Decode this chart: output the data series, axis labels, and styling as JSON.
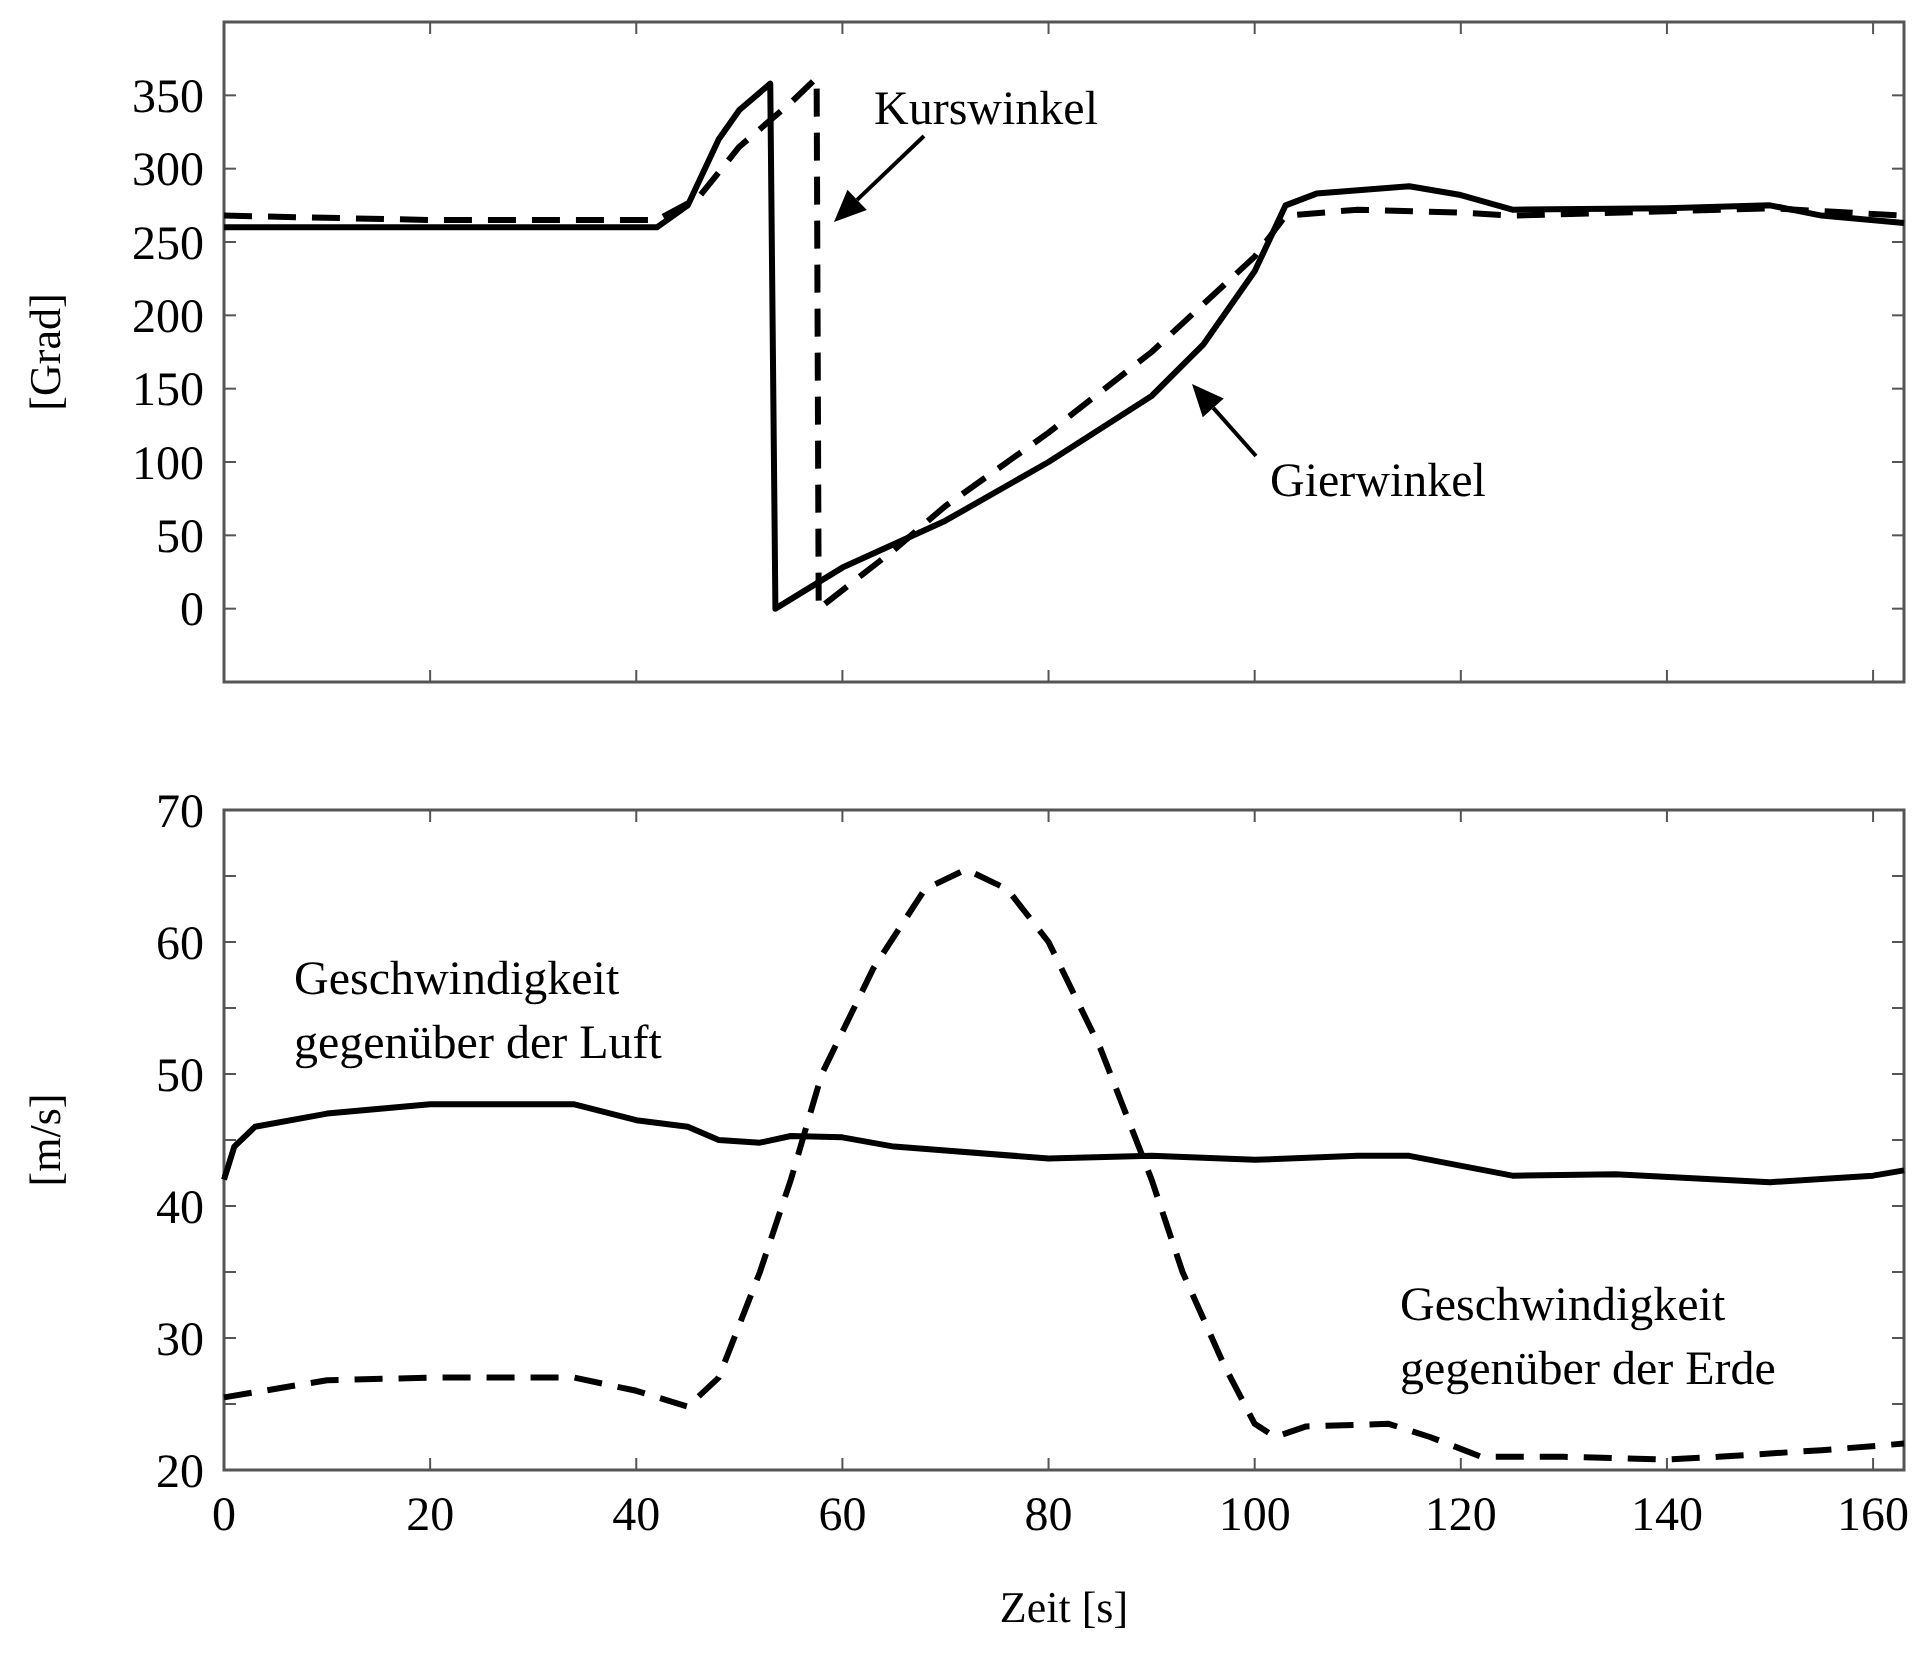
{
  "chart_data": [
    {
      "type": "line",
      "ylabel": "[Grad]",
      "xlim": [
        0,
        163
      ],
      "xticks": [
        {
          "value": 0,
          "label": null
        },
        {
          "value": 20,
          "label": null
        },
        {
          "value": 40,
          "label": null
        },
        {
          "value": 60,
          "label": null
        },
        {
          "value": 80,
          "label": null
        },
        {
          "value": 100,
          "label": null
        },
        {
          "value": 120,
          "label": null
        },
        {
          "value": 140,
          "label": null
        },
        {
          "value": 160,
          "label": null
        }
      ],
      "ylim": [
        -50,
        400
      ],
      "yticks": [
        0,
        50,
        100,
        150,
        200,
        250,
        300,
        350
      ],
      "tick_labels": "y",
      "grid": false,
      "series": [
        {
          "name": "Gierwinkel",
          "color": "#000000",
          "line_style": "solid",
          "x": [
            0,
            20,
            42,
            45,
            48,
            50,
            53,
            53.5,
            60,
            70,
            80,
            90,
            95,
            100,
            103,
            106,
            115,
            120,
            125,
            140,
            150,
            155,
            163
          ],
          "values": [
            260,
            260,
            260,
            275,
            320,
            340,
            358,
            0,
            28,
            60,
            100,
            145,
            180,
            230,
            275,
            283,
            288,
            282,
            272,
            273,
            275,
            268,
            263
          ]
        },
        {
          "name": "Kurswinkel",
          "color": "#000000",
          "line_style": "dashed",
          "x": [
            0,
            20,
            42,
            46,
            50,
            55,
            57.5,
            57.7,
            65,
            70,
            80,
            90,
            100,
            103,
            110,
            120,
            125,
            140,
            150,
            163
          ],
          "values": [
            268,
            265,
            265,
            280,
            315,
            345,
            362,
            0,
            40,
            70,
            120,
            175,
            240,
            268,
            272,
            270,
            268,
            271,
            273,
            268
          ]
        }
      ]
    },
    {
      "type": "line",
      "ylabel": "[m/s]",
      "xlabel": "Zeit [s]",
      "xlim": [
        0,
        163
      ],
      "xticks": [
        0,
        20,
        40,
        60,
        80,
        100,
        120,
        140,
        160
      ],
      "ylim": [
        20,
        70
      ],
      "yticks": [
        20,
        {
          "value": 25,
          "label": null
        },
        30,
        {
          "value": 35,
          "label": null
        },
        40,
        {
          "value": 45,
          "label": null
        },
        50,
        {
          "value": 55,
          "label": null
        },
        60,
        {
          "value": 65,
          "label": null
        },
        70
      ],
      "grid": false,
      "series": [
        {
          "name": "Geschwindigkeit gegenüber der Luft",
          "color": "#000000",
          "line_style": "solid",
          "x": [
            0,
            1,
            3,
            10,
            20,
            34,
            40,
            45,
            48,
            52,
            55,
            60,
            65,
            70,
            80,
            90,
            100,
            110,
            115,
            125,
            135,
            150,
            160,
            163
          ],
          "values": [
            42,
            44.5,
            46,
            47,
            47.7,
            47.7,
            46.5,
            46,
            45,
            44.8,
            45.3,
            45.2,
            44.5,
            44.2,
            43.6,
            43.8,
            43.5,
            43.8,
            43.8,
            42.3,
            42.4,
            41.8,
            42.3,
            42.7
          ]
        },
        {
          "name": "Geschwindigkeit gegenüber der Erde",
          "color": "#000000",
          "line_style": "dashed",
          "x": [
            0,
            10,
            20,
            34,
            40,
            45,
            48,
            52,
            55,
            58,
            63,
            68,
            72,
            76,
            80,
            85,
            88,
            90,
            93,
            97,
            100,
            102,
            105,
            113,
            117,
            122,
            130,
            140,
            145,
            155,
            163
          ],
          "values": [
            25.5,
            26.8,
            27,
            27,
            26,
            24.8,
            27,
            35,
            42,
            50,
            58,
            64,
            65.5,
            64,
            60,
            52,
            46,
            42,
            35,
            28,
            23.5,
            22.5,
            23.3,
            23.5,
            22.5,
            21,
            21,
            20.8,
            21,
            21.5,
            22
          ]
        }
      ]
    }
  ]
}
